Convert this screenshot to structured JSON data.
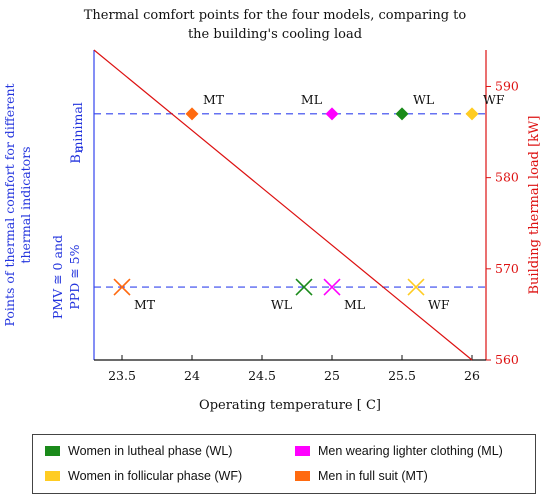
{
  "title_line1": "Thermal comfort points for the four models, comparing to",
  "title_line2": "the building's cooling load",
  "legend": [
    {
      "label": "Women in lutheal phase (WL)",
      "color": "#1a8a1a"
    },
    {
      "label": "Men wearing lighter clothing (ML)",
      "color": "#ff00ff"
    },
    {
      "label": "Women in follicular phase (WF)",
      "color": "#ffcc22"
    },
    {
      "label": "Men in full suit (MT)",
      "color": "#ff6a10"
    }
  ],
  "chart_data": {
    "type": "scatter",
    "title": "Thermal comfort points for the four models, comparing to the building's cooling load",
    "xlabel": "Operating temperature [ C]",
    "ylabel_left": "Points of thermal comfort for different thermal indicators",
    "ylabel_right": "Building thermal load [kW]",
    "xlim": [
      23.3,
      26.1
    ],
    "x_ticks": [
      "23.5",
      "24",
      "24.5",
      "25",
      "25.5",
      "26"
    ],
    "y_right_lim": [
      560,
      594
    ],
    "y_right_ticks": [
      "560",
      "570",
      "580",
      "590"
    ],
    "left_levels": {
      "top": {
        "label_bd": "B",
        "label_bd_sub": "d",
        "label_min": "minimal",
        "y_kw": 587
      },
      "bottom": {
        "label_line1": "PMV ≅ 0 and",
        "label_line2": "PPD ≅ 5%",
        "y_kw": 568
      }
    },
    "line": {
      "name": "Building thermal load",
      "color": "#dd1111",
      "x": [
        23.3,
        26.0
      ],
      "y": [
        594,
        560
      ]
    },
    "diamond_points": [
      {
        "label": "MT",
        "x": 24.0,
        "color": "#ff6a10"
      },
      {
        "label": "ML",
        "x": 25.0,
        "color": "#ff00ff"
      },
      {
        "label": "WL",
        "x": 25.5,
        "color": "#1a8a1a"
      },
      {
        "label": "WF",
        "x": 26.0,
        "color": "#ffcc22"
      }
    ],
    "cross_points": [
      {
        "label": "MT",
        "x": 23.5,
        "color": "#ff6a10"
      },
      {
        "label": "WL",
        "x": 24.8,
        "color": "#1a8a1a"
      },
      {
        "label": "ML",
        "x": 25.0,
        "color": "#ff00ff"
      },
      {
        "label": "WF",
        "x": 25.6,
        "color": "#ffcc22"
      }
    ],
    "dashed_color": "#3344ee",
    "grid": false
  }
}
